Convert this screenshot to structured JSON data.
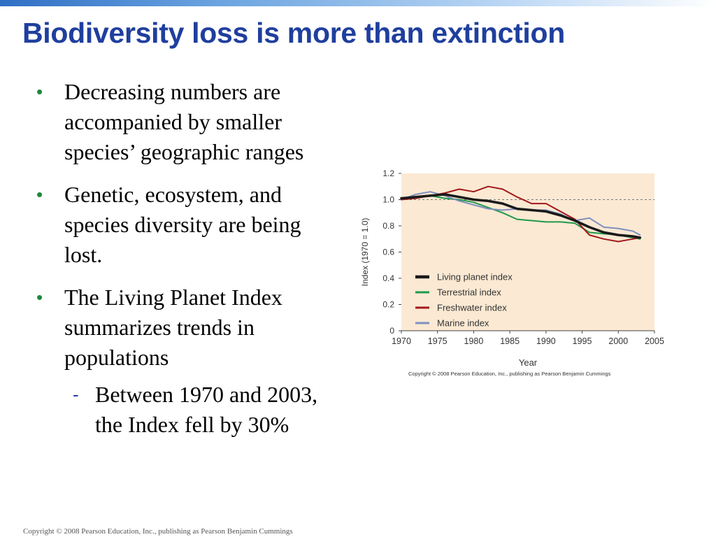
{
  "slide": {
    "title": "Biodiversity loss is more than extinction",
    "bullets": [
      "Decreasing numbers are accompanied by smaller species’ geographic ranges",
      "Genetic, ecosystem, and species diversity are being lost.",
      "The Living Planet Index summarizes trends in populations"
    ],
    "sub_bullet": "Between 1970 and 2003, the Index fell by 30%",
    "footer": "Copyright © 2008 Pearson Education, Inc., publishing as Pearson Benjamin Cummings"
  },
  "colors": {
    "title": "#1f3f9e",
    "bullet": "#1a8a3a",
    "plot_bg": "#fbe9d3"
  },
  "chart_data": {
    "type": "line",
    "xlabel": "Year",
    "ylabel": "Index (1970 = 1.0)",
    "xlim": [
      1970,
      2005
    ],
    "ylim": [
      0,
      1.2
    ],
    "xticks": [
      1970,
      1975,
      1980,
      1985,
      1990,
      1995,
      2000,
      2005
    ],
    "yticks": [
      0,
      0.2,
      0.4,
      0.6,
      0.8,
      1.0,
      1.2
    ],
    "ytick_labels": [
      "0",
      "0.2",
      "0.4",
      "0.6",
      "0.8",
      "1.0",
      "1.2"
    ],
    "reference_line": 1.0,
    "legend_position": "bottom-left",
    "copyright": "Copyright © 2008 Pearson Education, Inc., publishing as Pearson Benjamin Cummings",
    "x": [
      1970,
      1972,
      1974,
      1976,
      1978,
      1980,
      1982,
      1984,
      1986,
      1988,
      1990,
      1992,
      1994,
      1996,
      1998,
      2000,
      2002,
      2003
    ],
    "series": [
      {
        "name": "Living planet index",
        "color": "#1a1a1a",
        "values": [
          1.01,
          1.02,
          1.03,
          1.04,
          1.02,
          1.0,
          0.99,
          0.97,
          0.93,
          0.92,
          0.91,
          0.88,
          0.84,
          0.79,
          0.75,
          0.73,
          0.72,
          0.71
        ]
      },
      {
        "name": "Terrestrial index",
        "color": "#1f9a4a",
        "values": [
          1.0,
          1.02,
          1.03,
          1.01,
          1.0,
          0.98,
          0.94,
          0.9,
          0.85,
          0.84,
          0.83,
          0.83,
          0.82,
          0.75,
          0.74,
          0.73,
          0.71,
          0.7
        ]
      },
      {
        "name": "Freshwater index",
        "color": "#a3181c",
        "values": [
          1.0,
          1.01,
          1.03,
          1.05,
          1.08,
          1.06,
          1.1,
          1.08,
          1.02,
          0.97,
          0.97,
          0.91,
          0.85,
          0.73,
          0.7,
          0.68,
          0.7,
          0.71
        ]
      },
      {
        "name": "Marine index",
        "color": "#7f8fbf",
        "values": [
          1.0,
          1.04,
          1.06,
          1.03,
          0.99,
          0.96,
          0.93,
          0.92,
          0.93,
          0.92,
          0.92,
          0.89,
          0.84,
          0.86,
          0.79,
          0.78,
          0.76,
          0.73
        ]
      }
    ]
  }
}
